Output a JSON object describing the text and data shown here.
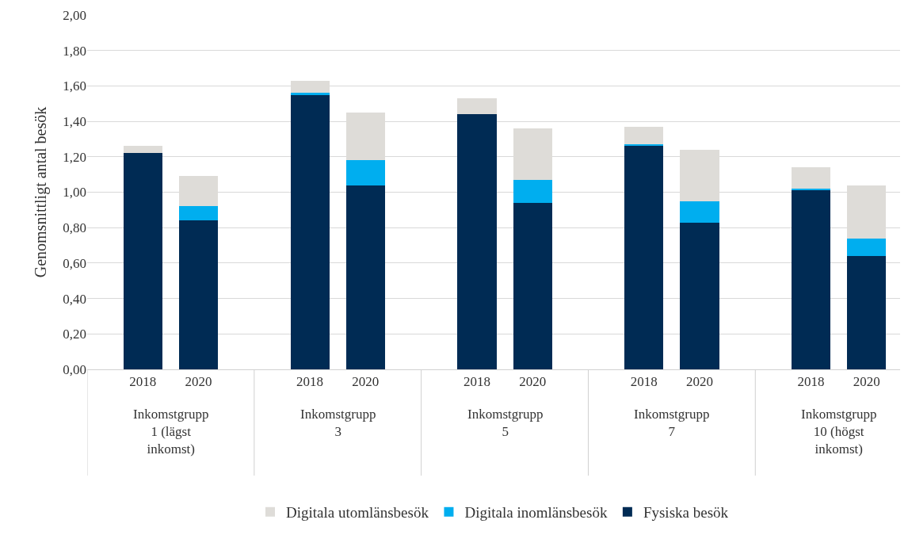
{
  "chart_data": {
    "type": "bar",
    "stacked": true,
    "ylabel": "Genomsnittligt antal besök",
    "categories": [
      "2018",
      "2020",
      "2018",
      "2020",
      "2018",
      "2020",
      "2018",
      "2020",
      "2018",
      "2020"
    ],
    "series": [
      {
        "name": "Fysiska besök",
        "color": "#002b54",
        "values": [
          1.22,
          0.84,
          1.55,
          1.04,
          1.44,
          0.94,
          1.26,
          0.83,
          1.01,
          0.64
        ]
      },
      {
        "name": "Digitala inomlänsbesök",
        "color": "#00aeef",
        "values": [
          0,
          0.08,
          0.01,
          0.14,
          0,
          0.13,
          0.01,
          0.12,
          0.01,
          0.1
        ]
      },
      {
        "name": "Digitala utomlänsbesök",
        "color": "#dedcd8",
        "values": [
          0.04,
          0.17,
          0.07,
          0.27,
          0.09,
          0.29,
          0.1,
          0.29,
          0.12,
          0.3
        ]
      }
    ],
    "ylim": [
      0,
      2
    ],
    "yticks": [
      {
        "value": 0,
        "label": "0,00"
      },
      {
        "value": 0.2,
        "label": "0,20"
      },
      {
        "value": 0.4,
        "label": "0,40"
      },
      {
        "value": 0.6,
        "label": "0,60"
      },
      {
        "value": 0.8,
        "label": "0,80"
      },
      {
        "value": 1,
        "label": "1,00"
      },
      {
        "value": 1.2,
        "label": "1,20"
      },
      {
        "value": 1.4,
        "label": "1,40"
      },
      {
        "value": 1.6,
        "label": "1,60"
      },
      {
        "value": 1.8,
        "label": "1,80"
      },
      {
        "value": 2,
        "label": "2,00"
      }
    ],
    "annotations": [
      "Inkomstgrupp 1 (lägst inkomst)",
      "Inkomstgrupp 3",
      "Inkomstgrupp 5",
      "Inkomstgrupp 7",
      "Inkomstgrupp 10 (högst inkomst)"
    ],
    "grid": "y",
    "legend": "bottom"
  }
}
